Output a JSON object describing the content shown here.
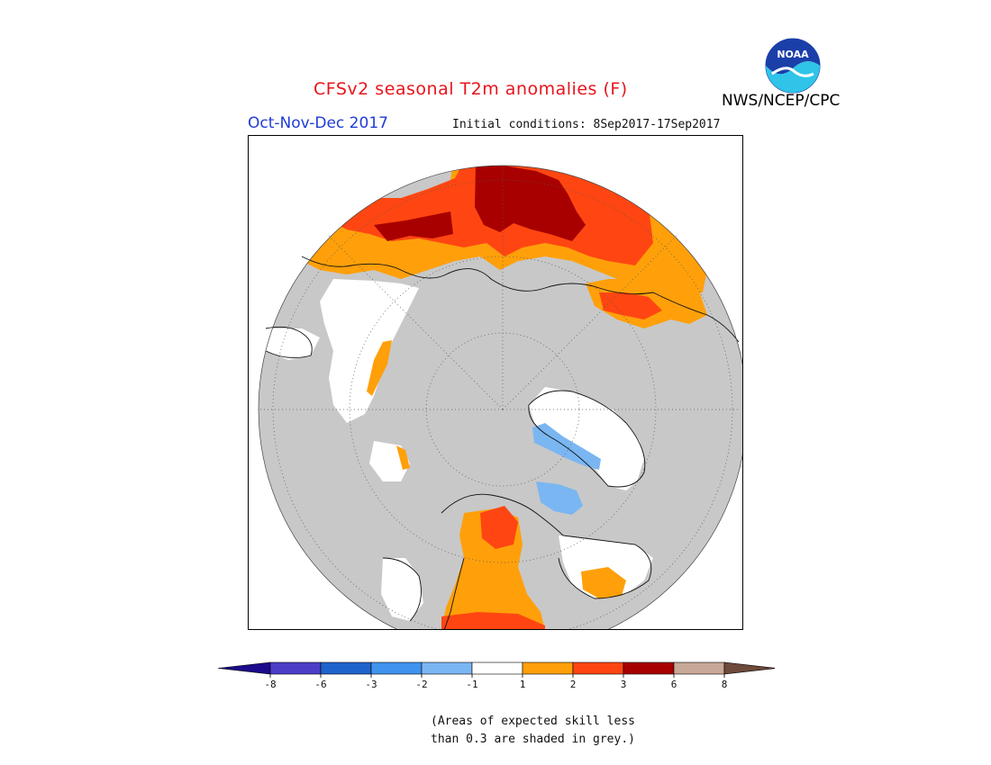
{
  "header": {
    "title": "CFSv2 seasonal T2m anomalies (F)",
    "period": "Oct-Nov-Dec 2017",
    "initial_conditions": "Initial conditions: 8Sep2017-17Sep2017",
    "agency": "NWS/NCEP/CPC",
    "logo_text": "NOAA"
  },
  "colors": {
    "grey_mask": "#c8c8c8",
    "title": "#e8141b",
    "period": "#1f3cd6"
  },
  "colorbar": {
    "ticks": [
      "-8",
      "-6",
      "-3",
      "-2",
      "-1",
      "1",
      "2",
      "3",
      "6",
      "8"
    ],
    "bins": [
      "#1c0b8c",
      "#4b3ec8",
      "#1f63cc",
      "#3f94ee",
      "#7ab6f2",
      "#ffffff",
      "#ffa00a",
      "#ff4612",
      "#a80000",
      "#c8a896",
      "#6e4a3a"
    ]
  },
  "footnote": {
    "line1": "(Areas of expected skill less",
    "line2": "than 0.3 are shaded in grey.)"
  }
}
